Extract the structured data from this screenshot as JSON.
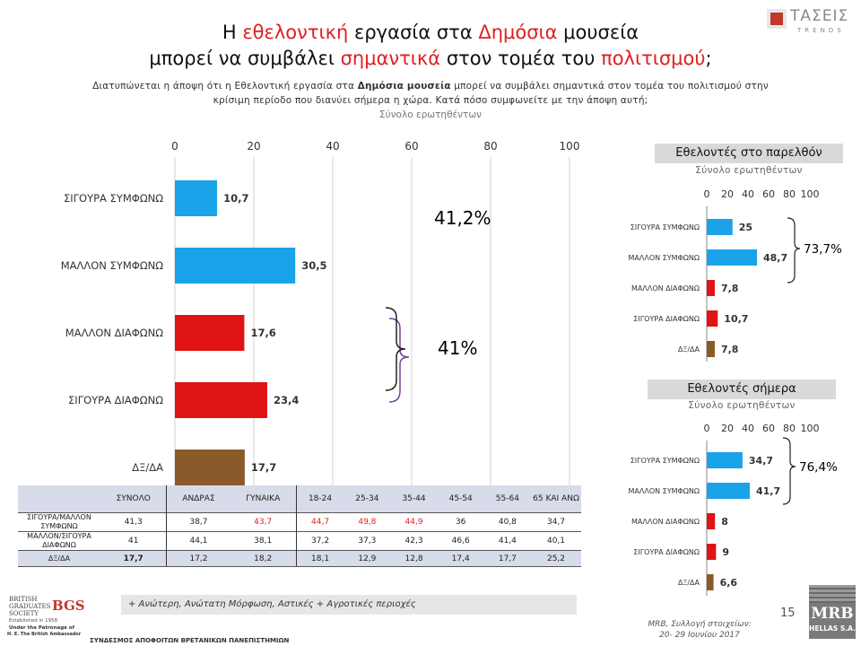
{
  "title": {
    "line1_a": "Η ",
    "line1_hl1": "εθελοντική",
    "line1_b": " εργασία στα ",
    "line1_hl2": "Δημόσια",
    "line1_c": " μουσεία",
    "line2_a": "μπορεί να συμβάλει ",
    "line2_hl1": "σημαντικά",
    "line2_b": " στον τομέα του ",
    "line2_hl2": "πολιτισμού",
    "line2_c": ";"
  },
  "subtitle": {
    "part1": "Διατυπώνεται η άποψη ότι η Εθελοντική εργασία στα ",
    "bold": "Δημόσια μουσεία",
    "part2": " μπορεί να συμβάλει σημαντικά στον τομέα του πολιτισμού στην",
    "line2": "κρίσιμη περίοδο που διανύει σήμερα η χώρα. Κατά πόσο συμφωνείτε με την άποψη αυτή;",
    "base": "Σύνολο ερωτηθέντων"
  },
  "logos": {
    "taseis": "ΤΑΣΕΙΣ",
    "trends": "TRENDS",
    "mrb": "MRB",
    "mrb_sub": "HELLAS S.A.",
    "bgs_line1": "BRITISH",
    "bgs_line2": "GRADUATES",
    "bgs_line3": "SOCIETY",
    "bgs_mark": "BGS",
    "bgs_est": "Established in 1958",
    "bgs_patron1": "Under the Patronage of",
    "bgs_patron2": "H. E. The British Ambassador",
    "bgs_caption": "ΣΥΝΔΕΣΜΟΣ ΑΠΟΦΟΙΤΩΝ ΒΡΕΤΑΝΙΚΩΝ ΠΑΝΕΠΙΣΤΗΜΙΩΝ"
  },
  "colors": {
    "blue": "#1aa3e8",
    "red": "#e01414",
    "brown": "#8b5a2b",
    "brace_top": "#7a3e96",
    "brace_bottom": "#222222"
  },
  "chart_data": [
    {
      "type": "bar",
      "orientation": "horizontal",
      "categories": [
        "ΣΙΓΟΥΡΑ ΣΥΜΦΩΝΩ",
        "ΜΑΛΛΟΝ ΣΥΜΦΩΝΩ",
        "ΜΑΛΛΟΝ ΔΙΑΦΩΝΩ",
        "ΣΙΓΟΥΡΑ ΔΙΑΦΩΝΩ",
        "ΔΞ/ΔΑ"
      ],
      "values": [
        10.7,
        30.5,
        17.6,
        23.4,
        17.7
      ],
      "labels": [
        "10,7",
        "30,5",
        "17,6",
        "23,4",
        "17,7"
      ],
      "bar_colors": [
        "blue",
        "blue",
        "red",
        "red",
        "brown"
      ],
      "xlim": [
        0,
        100
      ],
      "ticks": [
        "0",
        "20",
        "40",
        "60",
        "80",
        "100"
      ],
      "grid": true,
      "annotations": [
        "41,2%",
        "41%"
      ]
    },
    {
      "type": "bar",
      "orientation": "horizontal",
      "title": "Εθελοντές στο παρελθόν",
      "subtitle": "Σύνολο ερωτηθέντων",
      "categories": [
        "ΣΙΓΟΥΡΑ ΣΥΜΦΩΝΩ",
        "ΜΑΛΛΟΝ ΣΥΜΦΩΝΩ",
        "ΜΑΛΛΟΝ ΔΙΑΦΩΝΩ",
        "ΣΙΓΟΥΡΑ ΔΙΑΦΩΝΩ",
        "ΔΞ/ΔΑ"
      ],
      "values": [
        25,
        48.7,
        7.8,
        10.7,
        7.8
      ],
      "labels": [
        "25",
        "48,7",
        "7,8",
        "10,7",
        "7,8"
      ],
      "bar_colors": [
        "blue",
        "blue",
        "red",
        "red",
        "brown"
      ],
      "xlim": [
        0,
        100
      ],
      "ticks": [
        "0",
        "20",
        "40",
        "60",
        "80",
        "100"
      ],
      "grid": false,
      "annotations": [
        "73,7%"
      ]
    },
    {
      "type": "bar",
      "orientation": "horizontal",
      "title": "Εθελοντές σήμερα",
      "subtitle": "Σύνολο ερωτηθέντων",
      "categories": [
        "ΣΙΓΟΥΡΑ ΣΥΜΦΩΝΩ",
        "ΜΑΛΛΟΝ ΣΥΜΦΩΝΩ",
        "ΜΑΛΛΟΝ ΔΙΑΦΩΝΩ",
        "ΣΙΓΟΥΡΑ ΔΙΑΦΩΝΩ",
        "ΔΞ/ΔΑ"
      ],
      "values": [
        34.7,
        41.7,
        8,
        9,
        6.6
      ],
      "labels": [
        "34,7",
        "41,7",
        "8",
        "9",
        "6,6"
      ],
      "bar_colors": [
        "blue",
        "blue",
        "red",
        "red",
        "brown"
      ],
      "xlim": [
        0,
        100
      ],
      "ticks": [
        "0",
        "20",
        "40",
        "60",
        "80",
        "100"
      ],
      "grid": false,
      "annotations": [
        "76,4%"
      ]
    }
  ],
  "crosstab": {
    "headers": [
      "",
      "ΣΥΝΟΛΟ",
      "ΑΝΔΡΑΣ",
      "ΓΥΝΑΙΚΑ",
      "18-24",
      "25-34",
      "35-44",
      "45-54",
      "55-64",
      "65 ΚΑΙ ΑΝΩ"
    ],
    "rows": [
      {
        "label": "ΣΙΓΟΥΡΑ/ΜΑΛΛΟΝ ΣΥΜΦΩΝΩ",
        "cells": [
          "41,3",
          "38,7",
          "43,7",
          "44,7",
          "49,8",
          "44,9",
          "36",
          "40,8",
          "34,7"
        ],
        "red": [
          false,
          false,
          true,
          true,
          true,
          true,
          false,
          false,
          false
        ]
      },
      {
        "label": "ΜΑΛΛΟΝ/ΣΙΓΟΥΡΑ ΔΙΑΦΩΝΩ",
        "cells": [
          "41",
          "44,1",
          "38,1",
          "37,2",
          "37,3",
          "42,3",
          "46,6",
          "41,4",
          "40,1"
        ],
        "red": [
          false,
          false,
          false,
          false,
          false,
          false,
          false,
          false,
          false
        ]
      },
      {
        "label": "ΔΞ/ΔΑ",
        "cells": [
          "17,7",
          "17,2",
          "18,2",
          "18,1",
          "12,9",
          "12,8",
          "17,4",
          "17,7",
          "25,2"
        ],
        "red": [
          false,
          false,
          false,
          false,
          false,
          false,
          false,
          false,
          false
        ]
      }
    ]
  },
  "footnote": "+ Ανώτερη, Ανώτατη Μόρφωση, Αστικές + Αγροτικές περιοχές",
  "page_number": "15",
  "source_line1": "MRB, Συλλογή στοιχείων:",
  "source_line2": "20- 29 Ιουνίου 2017"
}
